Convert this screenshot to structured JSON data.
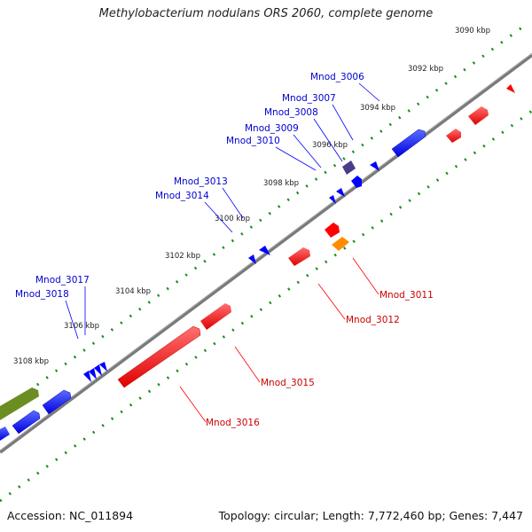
{
  "title": "Methylobacterium nodulans ORS 2060, complete genome",
  "footer": {
    "accession": "Accession: NC_011894",
    "summary": "Topology: circular; Length: 7,772,460 bp; Genes: 7,447"
  },
  "colors": {
    "backbone": "#808080",
    "tick": "#1a8c1a",
    "forward_gene": "#0000ff",
    "reverse_gene": "#ff0000",
    "label_forward": "#0000cc",
    "label_reverse": "#cc0000",
    "accent_purple": "#483d8b",
    "accent_orange": "#ff8c00",
    "accent_olive": "#6b8e23"
  },
  "scale_labels": [
    "3090 kbp",
    "3092 kbp",
    "3094 kbp",
    "3096 kbp",
    "3098 kbp",
    "3100 kbp",
    "3102 kbp",
    "3104 kbp",
    "3106 kbp",
    "3108 kbp"
  ],
  "forward_gene_labels": [
    "Mnod_3006",
    "Mnod_3007",
    "Mnod_3008",
    "Mnod_3009",
    "Mnod_3010",
    "Mnod_3013",
    "Mnod_3014",
    "Mnod_3017",
    "Mnod_3018"
  ],
  "reverse_gene_labels": [
    "Mnod_3011",
    "Mnod_3012",
    "Mnod_3015",
    "Mnod_3016"
  ]
}
